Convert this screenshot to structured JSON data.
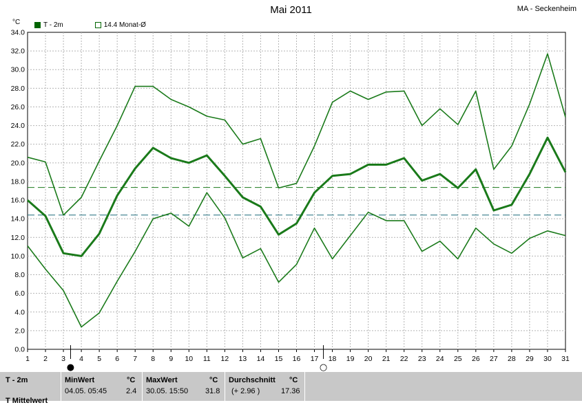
{
  "header": {
    "title": "Mai 2011",
    "station": "MA - Seckenheim"
  },
  "legend": {
    "series_label": "T - 2m",
    "avg_label": "14.4 Monat-Ø"
  },
  "colors": {
    "series": "#1a7a1a",
    "mean_line": "#1a7a1a",
    "avg_line": "#1a6a7a",
    "grid": "#b4b4b4"
  },
  "chart_data": {
    "type": "line",
    "title": "Mai 2011",
    "ylabel": "°C",
    "ylim": [
      0,
      34
    ],
    "yticks": [
      "0.0",
      "2.0",
      "4.0",
      "6.0",
      "8.0",
      "10.0",
      "12.0",
      "14.0",
      "16.0",
      "18.0",
      "20.0",
      "22.0",
      "24.0",
      "26.0",
      "28.0",
      "30.0",
      "32.0",
      "34.0"
    ],
    "x": [
      1,
      2,
      3,
      4,
      5,
      6,
      7,
      8,
      9,
      10,
      11,
      12,
      13,
      14,
      15,
      16,
      17,
      18,
      19,
      20,
      21,
      22,
      23,
      24,
      25,
      26,
      27,
      28,
      29,
      30,
      31
    ],
    "grid": true,
    "legend_position": "top-left",
    "series": [
      {
        "name": "",
        "role": "max",
        "values": [
          20.6,
          20.1,
          14.4,
          16.3,
          20.2,
          24.0,
          28.2,
          28.2,
          26.8,
          26.0,
          25.0,
          24.6,
          22.0,
          22.6,
          17.3,
          17.8,
          21.8,
          26.5,
          27.7,
          26.8,
          27.6,
          27.7,
          24.0,
          25.8,
          24.1,
          27.7,
          19.3,
          21.8,
          26.3,
          31.7,
          24.9
        ]
      },
      {
        "name": "T - 2m",
        "role": "mean",
        "values": [
          16.0,
          14.3,
          10.3,
          10.0,
          12.4,
          16.5,
          19.4,
          21.6,
          20.5,
          20.0,
          20.8,
          18.6,
          16.3,
          15.3,
          12.3,
          13.5,
          16.8,
          18.6,
          18.8,
          19.8,
          19.8,
          20.5,
          18.1,
          18.8,
          17.3,
          19.3,
          14.9,
          15.5,
          18.8,
          22.7,
          19.0
        ]
      },
      {
        "name": "",
        "role": "min",
        "values": [
          11.1,
          8.6,
          6.3,
          2.4,
          3.9,
          7.3,
          10.5,
          14.0,
          14.6,
          13.2,
          16.8,
          14.1,
          9.8,
          10.8,
          7.2,
          9.1,
          13.0,
          9.7,
          12.2,
          14.7,
          13.8,
          13.8,
          10.5,
          11.6,
          9.7,
          13.0,
          11.3,
          10.3,
          11.9,
          12.7,
          12.2
        ]
      }
    ],
    "hlines": [
      {
        "name": "14.4 Monat-Ø",
        "value": 14.4
      },
      {
        "name": "",
        "value": 17.36
      }
    ],
    "markers": [
      {
        "symbol": "●",
        "x": 3.4
      },
      {
        "symbol": "○",
        "x": 17.5
      }
    ]
  },
  "stats": {
    "row_label": "T - 2m",
    "row_label_2": "T Mittelwert",
    "min_header": "MinWert",
    "min_unit": "°C",
    "min_time": "04.05.  05:45",
    "min_value": "2.4",
    "max_header": "MaxWert",
    "max_unit": "°C",
    "max_time": "30.05.  15:50",
    "max_value": "31.8",
    "avg_header": "Durchschnitt",
    "avg_unit": "°C",
    "avg_delta": "(+ 2.96 )",
    "avg_value": "17.36"
  }
}
